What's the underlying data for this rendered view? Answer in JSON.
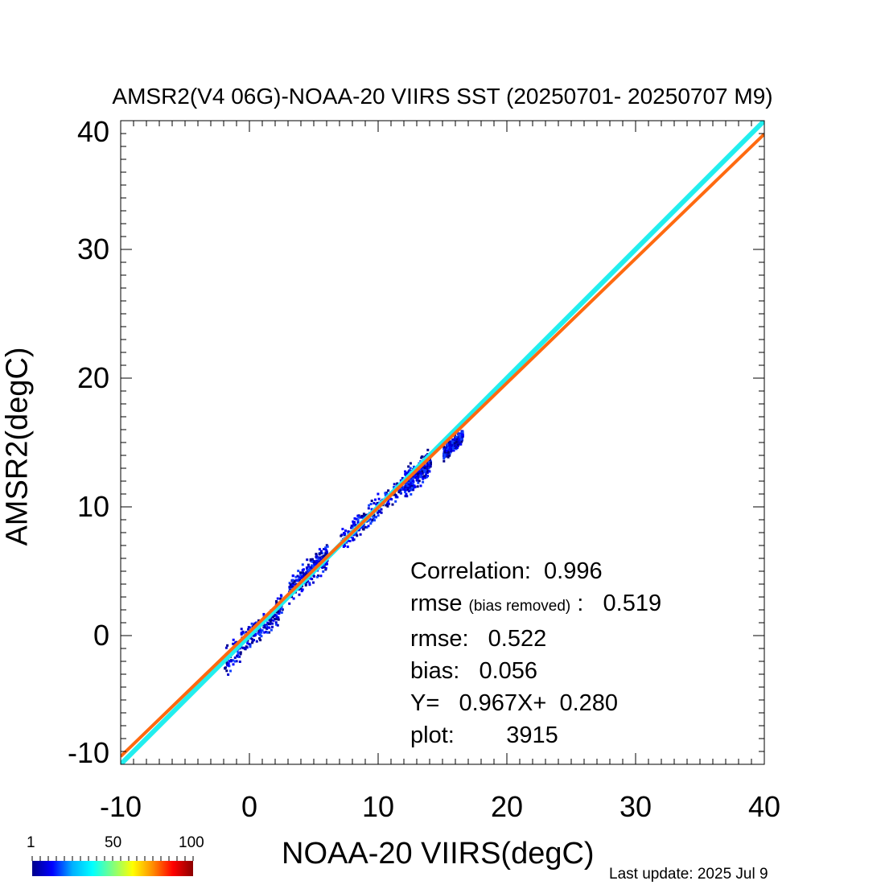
{
  "chart_data": {
    "type": "scatter",
    "title": "AMSR2(V4 06G)-NOAA-20 VIIRS SST (20250701- 20250707 M9)",
    "xlabel": "NOAA-20 VIIRS(degC)",
    "ylabel": "AMSR2(degC)",
    "xlim": [
      -10,
      40
    ],
    "ylim": [
      -10,
      40
    ],
    "xticks": [
      "-10",
      "0",
      "10",
      "20",
      "30",
      "40"
    ],
    "yticks": [
      "-10",
      "0",
      "10",
      "20",
      "30",
      "40"
    ],
    "scatter_density": {
      "description_colors": "density colored 1-100",
      "clusters": [
        {
          "x": [
            -2,
            2.5
          ],
          "center": 0.5,
          "offset": -0.3,
          "spread": 1.0
        },
        {
          "x": [
            3,
            6
          ],
          "center": 4.5,
          "offset": 0.3,
          "spread": 0.9
        },
        {
          "x": [
            7,
            12.5
          ],
          "center": 10,
          "offset": 0.2,
          "spread": 0.8
        },
        {
          "x": [
            12,
            14
          ],
          "center": 13,
          "offset": -0.2,
          "spread": 0.9
        },
        {
          "x": [
            15,
            16.5
          ],
          "center": 15.6,
          "offset": -0.6,
          "spread": 0.5
        }
      ]
    },
    "lines": [
      {
        "role": "one-to-one",
        "color": "#22eeee",
        "slope": 1.0,
        "intercept": 0.0
      },
      {
        "role": "regression",
        "color": "#ff6a10",
        "slope": 0.967,
        "intercept": 0.28
      }
    ],
    "colorbar": {
      "min_label": "1",
      "mid_label": "50",
      "max_label": "100",
      "colors": [
        "#00008b",
        "#0000ff",
        "#00b0ff",
        "#00ffff",
        "#7fff7f",
        "#ffff00",
        "#ff8c00",
        "#ff0000",
        "#8b0000"
      ]
    }
  },
  "stats": {
    "correlation_label": "Correlation:",
    "correlation_value": "0.996",
    "rmse_br_label": "rmse",
    "rmse_br_note": "(bias removed)",
    "rmse_br_sep": " :",
    "rmse_br_value": "0.519",
    "rmse_label": "rmse:",
    "rmse_value": "0.522",
    "bias_label": "bias:",
    "bias_value": "0.056",
    "fit_label": "Y=",
    "fit_slope": "0.967X+",
    "fit_intercept": "0.280",
    "plot_label": "plot:",
    "plot_value": "3915"
  },
  "footer": {
    "last_update": "Last update: 2025 Jul  9"
  }
}
